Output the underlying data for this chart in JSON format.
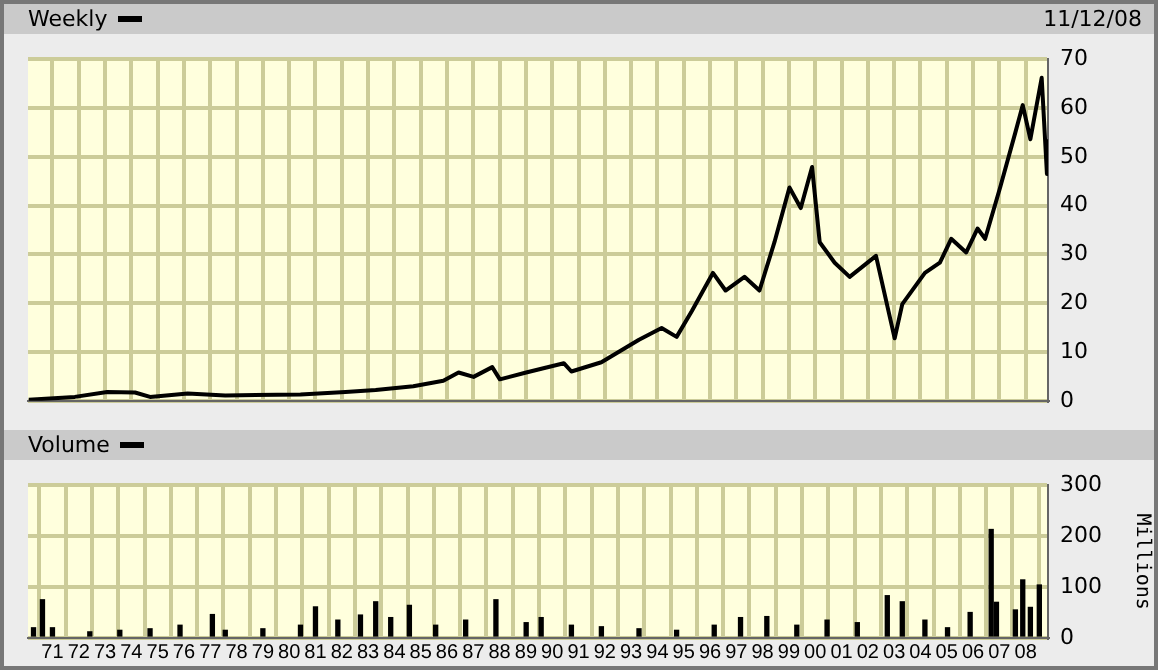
{
  "chart_data": [
    {
      "type": "line",
      "annotations": [
        "11/12/08"
      ],
      "legend": "top left",
      "grid": true,
      "tick_labels": "y",
      "series": [
        {
          "name": "Weekly",
          "color": "#000000",
          "x": [
            1970.1,
            1971.85,
            1973.08,
            1974.14,
            1974.71,
            1976.14,
            1977.57,
            1980.43,
            1982.14,
            1983.29,
            1984.72,
            1985.86,
            1986.44,
            1987.01,
            1987.72,
            1988.01,
            1989.01,
            1990.44,
            1990.73,
            1991.87,
            1993.3,
            1994.16,
            1994.73,
            1995.31,
            1996.11,
            1996.59,
            1997.31,
            1997.88,
            1998.45,
            1999.02,
            1999.45,
            1999.88,
            2000.17,
            2000.74,
            2001.31,
            2002.31,
            2003.02,
            2003.31,
            2004.17,
            2004.74,
            2005.17,
            2005.74,
            2006.17,
            2006.46,
            2007.03,
            2007.61,
            2007.89,
            2008.18,
            2008.61,
            2008.81,
            2008.84
          ],
          "values": [
            0.2,
            0.8,
            1.8,
            1.7,
            0.8,
            1.5,
            1.1,
            1.3,
            1.8,
            2.2,
            3,
            4.1,
            5.8,
            4.9,
            6.9,
            4.4,
            5.8,
            7.7,
            6,
            7.9,
            12.5,
            14.9,
            13.1,
            18.4,
            26.2,
            22.6,
            25.4,
            22.6,
            32.5,
            43.7,
            39.5,
            47.9,
            32.5,
            28.3,
            25.4,
            29.7,
            12.8,
            19.8,
            26.2,
            28.3,
            33.2,
            30.4,
            35.3,
            33.2,
            43.7,
            55,
            60.6,
            53.6,
            66.2,
            46.5,
            53.6
          ]
        }
      ],
      "xlim": [
        1970.07,
        2008.85
      ],
      "xticks": [
        {
          "value": 1971,
          "label": null
        },
        {
          "value": 1972,
          "label": null
        },
        {
          "value": 1973,
          "label": null
        },
        {
          "value": 1974,
          "label": null
        },
        {
          "value": 1975,
          "label": null
        },
        {
          "value": 1976,
          "label": null
        },
        {
          "value": 1977,
          "label": null
        },
        {
          "value": 1978,
          "label": null
        },
        {
          "value": 1979,
          "label": null
        },
        {
          "value": 1980,
          "label": null
        },
        {
          "value": 1981,
          "label": null
        },
        {
          "value": 1982,
          "label": null
        },
        {
          "value": 1983,
          "label": null
        },
        {
          "value": 1984,
          "label": null
        },
        {
          "value": 1985,
          "label": null
        },
        {
          "value": 1986,
          "label": null
        },
        {
          "value": 1987,
          "label": null
        },
        {
          "value": 1988,
          "label": null
        },
        {
          "value": 1989,
          "label": null
        },
        {
          "value": 1990,
          "label": null
        },
        {
          "value": 1991,
          "label": null
        },
        {
          "value": 1992,
          "label": null
        },
        {
          "value": 1993,
          "label": null
        },
        {
          "value": 1994,
          "label": null
        },
        {
          "value": 1995,
          "label": null
        },
        {
          "value": 1996,
          "label": null
        },
        {
          "value": 1997,
          "label": null
        },
        {
          "value": 1998,
          "label": null
        },
        {
          "value": 1999,
          "label": null
        },
        {
          "value": 2000,
          "label": null
        },
        {
          "value": 2001,
          "label": null
        },
        {
          "value": 2002,
          "label": null
        },
        {
          "value": 2003,
          "label": null
        },
        {
          "value": 2004,
          "label": null
        },
        {
          "value": 2005,
          "label": null
        },
        {
          "value": 2006,
          "label": null
        },
        {
          "value": 2007,
          "label": null
        },
        {
          "value": 2008,
          "label": null
        }
      ],
      "ylim": [
        0,
        70
      ],
      "yticks": [
        0,
        10,
        20,
        30,
        40,
        50,
        60,
        70
      ]
    },
    {
      "type": "bar",
      "legend": "top left",
      "grid": true,
      "ylabel": "Millions",
      "series": [
        {
          "name": "Volume",
          "color": "#000000",
          "x": [
            1970.28,
            1970.62,
            1971.0,
            1972.42,
            1973.56,
            1974.71,
            1975.85,
            1977.08,
            1977.57,
            1979.0,
            1980.43,
            1981.0,
            1981.85,
            1982.71,
            1983.29,
            1983.86,
            1984.57,
            1985.57,
            1986.71,
            1987.86,
            1989.01,
            1989.58,
            1990.73,
            1991.87,
            1993.3,
            1994.73,
            1996.16,
            1997.16,
            1998.16,
            1999.3,
            2000.45,
            2001.6,
            2002.74,
            2003.31,
            2004.17,
            2005.03,
            2005.89,
            2006.69,
            2006.89,
            2007.61,
            2007.89,
            2008.18,
            2008.52
          ],
          "values": [
            20,
            75,
            20,
            12,
            15,
            18,
            25,
            46,
            15,
            18,
            25,
            61,
            35,
            45,
            71,
            40,
            64,
            25,
            35,
            75,
            30,
            40,
            25,
            22,
            18,
            15,
            25,
            40,
            42,
            25,
            35,
            30,
            83,
            71,
            35,
            20,
            50,
            213,
            70,
            55,
            114,
            60,
            104
          ]
        }
      ],
      "xlim": [
        1970.07,
        2008.85
      ],
      "xticks": [
        {
          "value": 1971,
          "label": "71"
        },
        {
          "value": 1972,
          "label": "72"
        },
        {
          "value": 1973,
          "label": "73"
        },
        {
          "value": 1974,
          "label": "74"
        },
        {
          "value": 1975,
          "label": "75"
        },
        {
          "value": 1976,
          "label": "76"
        },
        {
          "value": 1977,
          "label": "77"
        },
        {
          "value": 1978,
          "label": "78"
        },
        {
          "value": 1979,
          "label": "79"
        },
        {
          "value": 1980,
          "label": "80"
        },
        {
          "value": 1981,
          "label": "81"
        },
        {
          "value": 1982,
          "label": "82"
        },
        {
          "value": 1983,
          "label": "83"
        },
        {
          "value": 1984,
          "label": "84"
        },
        {
          "value": 1985,
          "label": "85"
        },
        {
          "value": 1986,
          "label": "86"
        },
        {
          "value": 1987,
          "label": "87"
        },
        {
          "value": 1988,
          "label": "88"
        },
        {
          "value": 1989,
          "label": "89"
        },
        {
          "value": 1990,
          "label": "90"
        },
        {
          "value": 1991,
          "label": "91"
        },
        {
          "value": 1992,
          "label": "92"
        },
        {
          "value": 1993,
          "label": "93"
        },
        {
          "value": 1994,
          "label": "94"
        },
        {
          "value": 1995,
          "label": "95"
        },
        {
          "value": 1996,
          "label": "96"
        },
        {
          "value": 1997,
          "label": "97"
        },
        {
          "value": 1998,
          "label": "98"
        },
        {
          "value": 1999,
          "label": "99"
        },
        {
          "value": 2000,
          "label": "00"
        },
        {
          "value": 2001,
          "label": "01"
        },
        {
          "value": 2002,
          "label": "02"
        },
        {
          "value": 2003,
          "label": "03"
        },
        {
          "value": 2004,
          "label": "04"
        },
        {
          "value": 2005,
          "label": "05"
        },
        {
          "value": 2006,
          "label": "06"
        },
        {
          "value": 2007,
          "label": "07"
        },
        {
          "value": 2008,
          "label": "08"
        }
      ],
      "ylim": [
        0,
        300
      ],
      "yticks": [
        0,
        100,
        200,
        300
      ]
    }
  ]
}
